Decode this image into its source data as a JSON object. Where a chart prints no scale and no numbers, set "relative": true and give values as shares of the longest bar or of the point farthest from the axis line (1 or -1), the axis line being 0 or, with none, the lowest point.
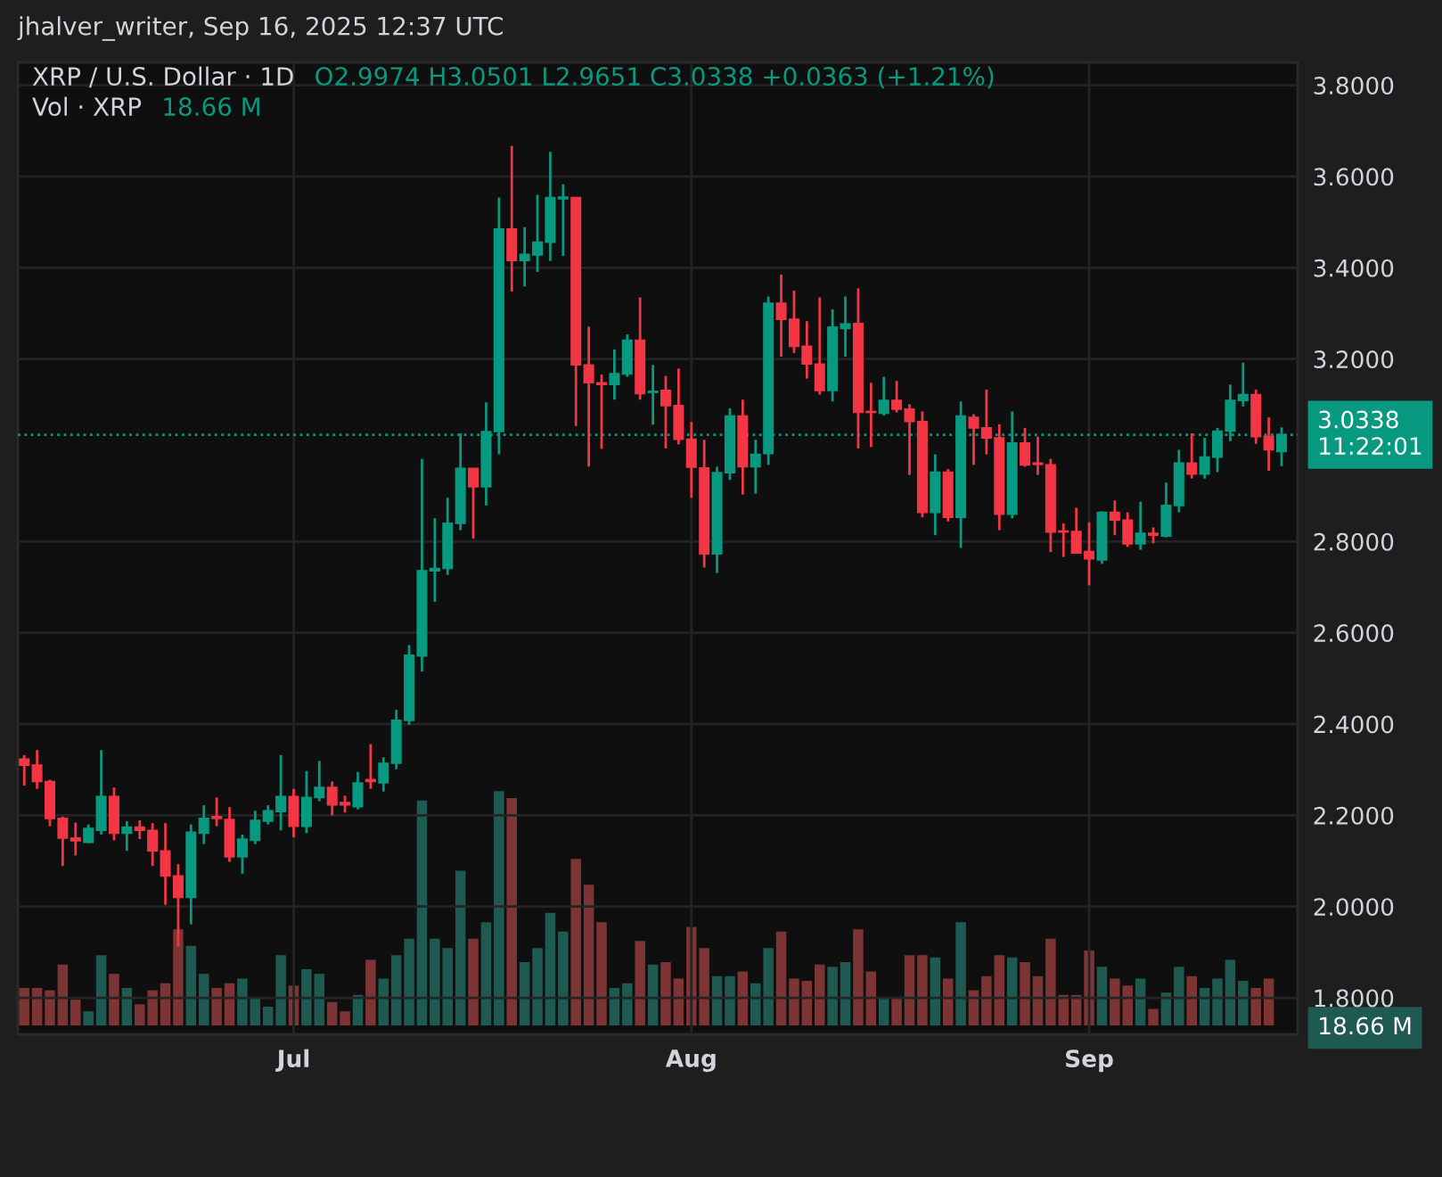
{
  "chart_data": [
    {
      "type": "candlestick",
      "title": "XRP / U.S. Dollar · 1D",
      "subtitle": "O2.9974 H3.0501 L2.9651 C3.0338 +0.0363 (+1.21%)",
      "annotations": [
        "jhalver_writer, Sep 16, 2025 12:37 UTC"
      ],
      "x": [
        "2025-06-10",
        "2025-06-11",
        "2025-06-12",
        "2025-06-13",
        "2025-06-14",
        "2025-06-15",
        "2025-06-16",
        "2025-06-17",
        "2025-06-18",
        "2025-06-19",
        "2025-06-20",
        "2025-06-21",
        "2025-06-22",
        "2025-06-23",
        "2025-06-24",
        "2025-06-25",
        "2025-06-26",
        "2025-06-27",
        "2025-06-28",
        "2025-06-29",
        "2025-06-30",
        "2025-07-01",
        "2025-07-02",
        "2025-07-03",
        "2025-07-04",
        "2025-07-05",
        "2025-07-06",
        "2025-07-07",
        "2025-07-08",
        "2025-07-09",
        "2025-07-10",
        "2025-07-11",
        "2025-07-12",
        "2025-07-13",
        "2025-07-14",
        "2025-07-15",
        "2025-07-16",
        "2025-07-17",
        "2025-07-18",
        "2025-07-19",
        "2025-07-20",
        "2025-07-21",
        "2025-07-22",
        "2025-07-23",
        "2025-07-24",
        "2025-07-25",
        "2025-07-26",
        "2025-07-27",
        "2025-07-28",
        "2025-07-29",
        "2025-07-30",
        "2025-07-31",
        "2025-08-01",
        "2025-08-02",
        "2025-08-03",
        "2025-08-04",
        "2025-08-05",
        "2025-08-06",
        "2025-08-07",
        "2025-08-08",
        "2025-08-09",
        "2025-08-10",
        "2025-08-11",
        "2025-08-12",
        "2025-08-13",
        "2025-08-14",
        "2025-08-15",
        "2025-08-16",
        "2025-08-17",
        "2025-08-18",
        "2025-08-19",
        "2025-08-20",
        "2025-08-21",
        "2025-08-22",
        "2025-08-23",
        "2025-08-24",
        "2025-08-25",
        "2025-08-26",
        "2025-08-27",
        "2025-08-28",
        "2025-08-29",
        "2025-08-30",
        "2025-08-31",
        "2025-09-01",
        "2025-09-02",
        "2025-09-03",
        "2025-09-04",
        "2025-09-05",
        "2025-09-06",
        "2025-09-07",
        "2025-09-08",
        "2025-09-09",
        "2025-09-10",
        "2025-09-11",
        "2025-09-12",
        "2025-09-13",
        "2025-09-14",
        "2025-09-15",
        "2025-09-16"
      ],
      "ohlc": [
        [
          2.323,
          2.332,
          2.265,
          2.31
        ],
        [
          2.31,
          2.343,
          2.258,
          2.274
        ],
        [
          2.274,
          2.278,
          2.176,
          2.193
        ],
        [
          2.193,
          2.197,
          2.089,
          2.15
        ],
        [
          2.15,
          2.184,
          2.112,
          2.144
        ],
        [
          2.141,
          2.18,
          2.139,
          2.171
        ],
        [
          2.167,
          2.343,
          2.158,
          2.241
        ],
        [
          2.241,
          2.261,
          2.145,
          2.161
        ],
        [
          2.161,
          2.187,
          2.122,
          2.174
        ],
        [
          2.174,
          2.189,
          2.148,
          2.167
        ],
        [
          2.167,
          2.183,
          2.089,
          2.122
        ],
        [
          2.122,
          2.183,
          2.004,
          2.067
        ],
        [
          2.067,
          2.093,
          1.913,
          2.02
        ],
        [
          2.02,
          2.18,
          1.961,
          2.163
        ],
        [
          2.161,
          2.222,
          2.137,
          2.193
        ],
        [
          2.197,
          2.239,
          2.176,
          2.193
        ],
        [
          2.191,
          2.218,
          2.098,
          2.109
        ],
        [
          2.109,
          2.158,
          2.072,
          2.148
        ],
        [
          2.145,
          2.21,
          2.137,
          2.189
        ],
        [
          2.187,
          2.222,
          2.18,
          2.21
        ],
        [
          2.208,
          2.332,
          2.167,
          2.241
        ],
        [
          2.241,
          2.258,
          2.152,
          2.176
        ],
        [
          2.176,
          2.297,
          2.161,
          2.239
        ],
        [
          2.239,
          2.319,
          2.231,
          2.261
        ],
        [
          2.261,
          2.274,
          2.2,
          2.223
        ],
        [
          2.228,
          2.243,
          2.206,
          2.223
        ],
        [
          2.219,
          2.295,
          2.213,
          2.271
        ],
        [
          2.278,
          2.356,
          2.258,
          2.274
        ],
        [
          2.271,
          2.327,
          2.252,
          2.314
        ],
        [
          2.314,
          2.431,
          2.301,
          2.408
        ],
        [
          2.408,
          2.573,
          2.398,
          2.551
        ],
        [
          2.549,
          2.981,
          2.515,
          2.736
        ],
        [
          2.736,
          2.851,
          2.668,
          2.741
        ],
        [
          2.741,
          2.896,
          2.727,
          2.84
        ],
        [
          2.84,
          3.037,
          2.825,
          2.96
        ],
        [
          2.96,
          2.96,
          2.806,
          2.92
        ],
        [
          2.92,
          3.105,
          2.879,
          3.041
        ],
        [
          3.041,
          3.554,
          2.991,
          3.485
        ],
        [
          3.485,
          3.667,
          3.348,
          3.416
        ],
        [
          3.416,
          3.489,
          3.359,
          3.429
        ],
        [
          3.428,
          3.56,
          3.391,
          3.456
        ],
        [
          3.456,
          3.654,
          3.415,
          3.554
        ],
        [
          3.551,
          3.583,
          3.426,
          3.555
        ],
        [
          3.554,
          3.554,
          3.053,
          3.187
        ],
        [
          3.187,
          3.271,
          2.964,
          3.148
        ],
        [
          3.148,
          3.166,
          3.003,
          3.144
        ],
        [
          3.144,
          3.221,
          3.111,
          3.168
        ],
        [
          3.167,
          3.254,
          3.161,
          3.241
        ],
        [
          3.241,
          3.335,
          3.111,
          3.124
        ],
        [
          3.127,
          3.187,
          3.056,
          3.129
        ],
        [
          3.131,
          3.163,
          3.004,
          3.098
        ],
        [
          3.098,
          3.179,
          3.013,
          3.024
        ],
        [
          3.024,
          3.062,
          2.896,
          2.963
        ],
        [
          2.961,
          3.023,
          2.743,
          2.773
        ],
        [
          2.773,
          2.964,
          2.731,
          2.951
        ],
        [
          2.951,
          3.092,
          2.935,
          3.075
        ],
        [
          3.075,
          3.111,
          2.903,
          2.964
        ],
        [
          2.964,
          3.023,
          2.905,
          2.991
        ],
        [
          2.993,
          3.337,
          2.968,
          3.322
        ],
        [
          3.322,
          3.385,
          3.205,
          3.287
        ],
        [
          3.287,
          3.35,
          3.213,
          3.228
        ],
        [
          3.228,
          3.283,
          3.157,
          3.189
        ],
        [
          3.189,
          3.335,
          3.122,
          3.131
        ],
        [
          3.131,
          3.309,
          3.107,
          3.27
        ],
        [
          3.267,
          3.337,
          3.205,
          3.277
        ],
        [
          3.278,
          3.355,
          3.004,
          3.083
        ],
        [
          3.085,
          3.148,
          3.007,
          3.083
        ],
        [
          3.081,
          3.161,
          3.076,
          3.109
        ],
        [
          3.109,
          3.152,
          3.083,
          3.09
        ],
        [
          3.09,
          3.101,
          2.946,
          3.063
        ],
        [
          3.063,
          3.085,
          2.853,
          2.864
        ],
        [
          2.864,
          2.991,
          2.814,
          2.952
        ],
        [
          2.952,
          2.959,
          2.844,
          2.853
        ],
        [
          2.853,
          3.107,
          2.786,
          3.075
        ],
        [
          3.072,
          3.079,
          2.968,
          3.049
        ],
        [
          3.049,
          3.133,
          2.991,
          3.027
        ],
        [
          3.027,
          3.057,
          2.825,
          2.86
        ],
        [
          2.86,
          3.085,
          2.851,
          3.016
        ],
        [
          3.016,
          3.049,
          2.964,
          2.968
        ],
        [
          2.972,
          3.03,
          2.946,
          2.969
        ],
        [
          2.968,
          2.981,
          2.777,
          2.821
        ],
        [
          2.823,
          2.84,
          2.766,
          2.821
        ],
        [
          2.822,
          2.874,
          2.773,
          2.775
        ],
        [
          2.778,
          2.842,
          2.704,
          2.762
        ],
        [
          2.76,
          2.866,
          2.751,
          2.864
        ],
        [
          2.864,
          2.89,
          2.814,
          2.847
        ],
        [
          2.847,
          2.864,
          2.788,
          2.795
        ],
        [
          2.795,
          2.887,
          2.782,
          2.818
        ],
        [
          2.818,
          2.831,
          2.796,
          2.814
        ],
        [
          2.812,
          2.929,
          2.809,
          2.879
        ],
        [
          2.879,
          3.001,
          2.864,
          2.972
        ],
        [
          2.972,
          3.037,
          2.938,
          2.948
        ],
        [
          2.948,
          3.027,
          2.938,
          2.985
        ],
        [
          2.985,
          3.049,
          2.952,
          3.042
        ],
        [
          3.042,
          3.144,
          3.02,
          3.109
        ],
        [
          3.109,
          3.192,
          3.096,
          3.122
        ],
        [
          3.122,
          3.133,
          3.014,
          3.03
        ],
        [
          3.03,
          3.072,
          2.955,
          3.001
        ],
        [
          2.9974,
          3.0501,
          2.9651,
          3.0338
        ]
      ],
      "colors": [
        "#f23645",
        "#f23645",
        "#f23645",
        "#f23645",
        "#f23645",
        "#089981",
        "#089981",
        "#f23645",
        "#089981",
        "#f23645",
        "#f23645",
        "#f23645",
        "#f23645",
        "#089981",
        "#089981",
        "#f23645",
        "#f23645",
        "#089981",
        "#089981",
        "#089981",
        "#089981",
        "#f23645",
        "#089981",
        "#089981",
        "#f23645",
        "#f23645",
        "#089981",
        "#f23645",
        "#089981",
        "#089981",
        "#089981",
        "#089981",
        "#089981",
        "#089981",
        "#089981",
        "#f23645",
        "#089981",
        "#089981",
        "#f23645",
        "#089981",
        "#089981",
        "#089981",
        "#089981",
        "#f23645",
        "#f23645",
        "#f23645",
        "#089981",
        "#089981",
        "#f23645",
        "#089981",
        "#f23645",
        "#f23645",
        "#f23645",
        "#f23645",
        "#089981",
        "#089981",
        "#f23645",
        "#089981",
        "#089981",
        "#f23645",
        "#f23645",
        "#f23645",
        "#f23645",
        "#089981",
        "#089981",
        "#f23645",
        "#f23645",
        "#089981",
        "#f23645",
        "#f23645",
        "#f23645",
        "#089981",
        "#f23645",
        "#089981",
        "#f23645",
        "#f23645",
        "#f23645",
        "#089981",
        "#f23645",
        "#f23645",
        "#f23645",
        "#f23645",
        "#f23645",
        "#f23645",
        "#089981",
        "#f23645",
        "#f23645",
        "#089981",
        "#f23645",
        "#089981",
        "#089981",
        "#f23645",
        "#089981",
        "#089981",
        "#089981",
        "#089981",
        "#f23645",
        "#f23645",
        "#089981"
      ],
      "xlim": [
        "2025-06-09T12:00",
        "2025-09-17T06:00"
      ],
      "xticks": [
        {
          "value": "2025-07-01",
          "label": "Jul"
        },
        {
          "value": "2025-08-01",
          "label": "Aug"
        },
        {
          "value": "2025-09-01",
          "label": "Sep"
        }
      ],
      "ylim": [
        1.72,
        3.85
      ],
      "yticks": [
        {
          "value": 1.8,
          "label": "1.8000"
        },
        {
          "value": 2.0,
          "label": "2.0000"
        },
        {
          "value": 2.2,
          "label": "2.2000"
        },
        {
          "value": 2.4,
          "label": "2.4000"
        },
        {
          "value": 2.6,
          "label": "2.6000"
        },
        {
          "value": 2.8,
          "label": "2.8000"
        },
        {
          "value": 3.2,
          "label": "3.2000"
        },
        {
          "value": 3.4,
          "label": "3.4000"
        },
        {
          "value": 3.6,
          "label": "3.6000"
        },
        {
          "value": 3.8,
          "label": "3.8000"
        }
      ],
      "ref_lines": [
        {
          "axis": "y",
          "value": 3.0338,
          "label": "3.0338\n11:22:01",
          "color": "#089981",
          "line_style": "dotted"
        }
      ],
      "grid": true
    },
    {
      "type": "bar",
      "relative": true,
      "title": "Vol · XRP",
      "annotations": [
        "18.66 M",
        "18.66 M"
      ],
      "x": [
        "2025-06-10",
        "2025-06-11",
        "2025-06-12",
        "2025-06-13",
        "2025-06-14",
        "2025-06-15",
        "2025-06-16",
        "2025-06-17",
        "2025-06-18",
        "2025-06-19",
        "2025-06-20",
        "2025-06-21",
        "2025-06-22",
        "2025-06-23",
        "2025-06-24",
        "2025-06-25",
        "2025-06-26",
        "2025-06-27",
        "2025-06-28",
        "2025-06-29",
        "2025-06-30",
        "2025-07-01",
        "2025-07-02",
        "2025-07-03",
        "2025-07-04",
        "2025-07-05",
        "2025-07-06",
        "2025-07-07",
        "2025-07-08",
        "2025-07-09",
        "2025-07-10",
        "2025-07-11",
        "2025-07-12",
        "2025-07-13",
        "2025-07-14",
        "2025-07-15",
        "2025-07-16",
        "2025-07-17",
        "2025-07-18",
        "2025-07-19",
        "2025-07-20",
        "2025-07-21",
        "2025-07-22",
        "2025-07-23",
        "2025-07-24",
        "2025-07-25",
        "2025-07-26",
        "2025-07-27",
        "2025-07-28",
        "2025-07-29",
        "2025-07-30",
        "2025-07-31",
        "2025-08-01",
        "2025-08-02",
        "2025-08-03",
        "2025-08-04",
        "2025-08-05",
        "2025-08-06",
        "2025-08-07",
        "2025-08-08",
        "2025-08-09",
        "2025-08-10",
        "2025-08-11",
        "2025-08-12",
        "2025-08-13",
        "2025-08-14",
        "2025-08-15",
        "2025-08-16",
        "2025-08-17",
        "2025-08-18",
        "2025-08-19",
        "2025-08-20",
        "2025-08-21",
        "2025-08-22",
        "2025-08-23",
        "2025-08-24",
        "2025-08-25",
        "2025-08-26",
        "2025-08-27",
        "2025-08-28",
        "2025-08-29",
        "2025-08-30",
        "2025-08-31",
        "2025-09-01",
        "2025-09-02",
        "2025-09-03",
        "2025-09-04",
        "2025-09-05",
        "2025-09-06",
        "2025-09-07",
        "2025-09-08",
        "2025-09-09",
        "2025-09-10",
        "2025-09-11",
        "2025-09-12",
        "2025-09-13",
        "2025-09-14",
        "2025-09-15"
      ],
      "xlim": [
        "2025-06-09T12:00",
        "2025-09-17T06:00"
      ],
      "values": [
        0.16,
        0.16,
        0.15,
        0.26,
        0.11,
        0.06,
        0.3,
        0.22,
        0.16,
        0.09,
        0.15,
        0.18,
        0.41,
        0.34,
        0.22,
        0.16,
        0.18,
        0.2,
        0.12,
        0.08,
        0.3,
        0.17,
        0.24,
        0.22,
        0.1,
        0.06,
        0.13,
        0.28,
        0.2,
        0.3,
        0.37,
        0.96,
        0.37,
        0.33,
        0.66,
        0.37,
        0.44,
        1,
        0.97,
        0.27,
        0.33,
        0.48,
        0.4,
        0.71,
        0.6,
        0.44,
        0.16,
        0.18,
        0.36,
        0.26,
        0.27,
        0.2,
        0.42,
        0.33,
        0.21,
        0.21,
        0.23,
        0.18,
        0.33,
        0.4,
        0.2,
        0.19,
        0.26,
        0.25,
        0.27,
        0.41,
        0.23,
        0.12,
        0.12,
        0.3,
        0.3,
        0.29,
        0.2,
        0.44,
        0.15,
        0.21,
        0.3,
        0.29,
        0.27,
        0.21,
        0.37,
        0.13,
        0.13,
        0.32,
        0.25,
        0.2,
        0.17,
        0.2,
        0.07,
        0.14,
        0.25,
        0.21,
        0.16,
        0.2,
        0.28,
        0.19,
        0.16,
        0.2
      ],
      "colors": [
        "#7c3434",
        "#7c3434",
        "#7c3434",
        "#7c3434",
        "#7c3434",
        "#1f5a52",
        "#1f5a52",
        "#7c3434",
        "#1f5a52",
        "#7c3434",
        "#7c3434",
        "#7c3434",
        "#7c3434",
        "#1f5a52",
        "#1f5a52",
        "#7c3434",
        "#7c3434",
        "#1f5a52",
        "#1f5a52",
        "#1f5a52",
        "#1f5a52",
        "#7c3434",
        "#1f5a52",
        "#1f5a52",
        "#7c3434",
        "#7c3434",
        "#1f5a52",
        "#7c3434",
        "#1f5a52",
        "#1f5a52",
        "#1f5a52",
        "#1f5a52",
        "#1f5a52",
        "#1f5a52",
        "#1f5a52",
        "#7c3434",
        "#1f5a52",
        "#1f5a52",
        "#7c3434",
        "#1f5a52",
        "#1f5a52",
        "#1f5a52",
        "#1f5a52",
        "#7c3434",
        "#7c3434",
        "#7c3434",
        "#1f5a52",
        "#1f5a52",
        "#7c3434",
        "#1f5a52",
        "#7c3434",
        "#7c3434",
        "#7c3434",
        "#7c3434",
        "#1f5a52",
        "#1f5a52",
        "#7c3434",
        "#1f5a52",
        "#1f5a52",
        "#7c3434",
        "#7c3434",
        "#7c3434",
        "#7c3434",
        "#1f5a52",
        "#1f5a52",
        "#7c3434",
        "#7c3434",
        "#1f5a52",
        "#7c3434",
        "#7c3434",
        "#7c3434",
        "#1f5a52",
        "#7c3434",
        "#1f5a52",
        "#7c3434",
        "#7c3434",
        "#7c3434",
        "#1f5a52",
        "#7c3434",
        "#7c3434",
        "#7c3434",
        "#7c3434",
        "#7c3434",
        "#7c3434",
        "#1f5a52",
        "#7c3434",
        "#7c3434",
        "#1f5a52",
        "#7c3434",
        "#1f5a52",
        "#1f5a52",
        "#7c3434",
        "#1f5a52",
        "#1f5a52",
        "#1f5a52",
        "#1f5a52",
        "#7c3434",
        "#7c3434"
      ]
    }
  ]
}
